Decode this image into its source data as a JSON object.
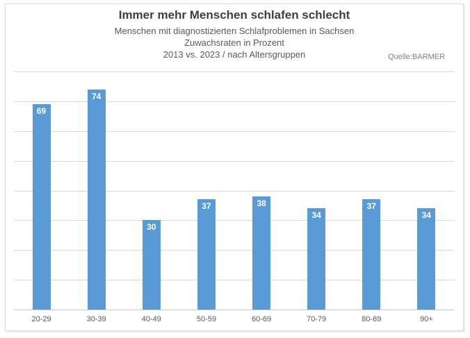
{
  "header": {
    "title": "Immer mehr Menschen schlafen schlecht",
    "subtitle_lines": [
      "Menschen mit diagnostizierten Schlafproblemen in Sachsen",
      "Zuwachsraten in Prozent",
      "2013 vs. 2023 / nach Altersgruppen"
    ],
    "source": "Quelle:BARMER"
  },
  "chart_data": {
    "type": "bar",
    "title": "Immer mehr Menschen schlafen schlecht",
    "subtitle": "Menschen mit diagnostizierten Schlafproblemen in Sachsen / Zuwachsraten in Prozent / 2013 vs. 2023 / nach Altersgruppen",
    "source": "Quelle:BARMER",
    "categories": [
      "20-29",
      "30-39",
      "40-49",
      "50-59",
      "60-69",
      "70-79",
      "80-89",
      "90+"
    ],
    "values": [
      69,
      74,
      30,
      37,
      38,
      34,
      37,
      34
    ],
    "xlabel": "",
    "ylabel": "",
    "ylim": [
      0,
      80
    ],
    "grid_step": 10,
    "grid": true,
    "legend": false,
    "y_tick_labels_visible": false,
    "data_labels_position": "inside-end"
  },
  "colors": {
    "bar": "#5b9bd5",
    "bar_label": "#ffffff",
    "gridline": "#d9d9d9",
    "axis_line": "#c6c6c6",
    "axis_label": "#595959",
    "title": "#3f3f3f",
    "subtitle": "#595959",
    "source": "#7f7f7f",
    "frame_border": "#d9d9d9",
    "background": "#ffffff"
  }
}
